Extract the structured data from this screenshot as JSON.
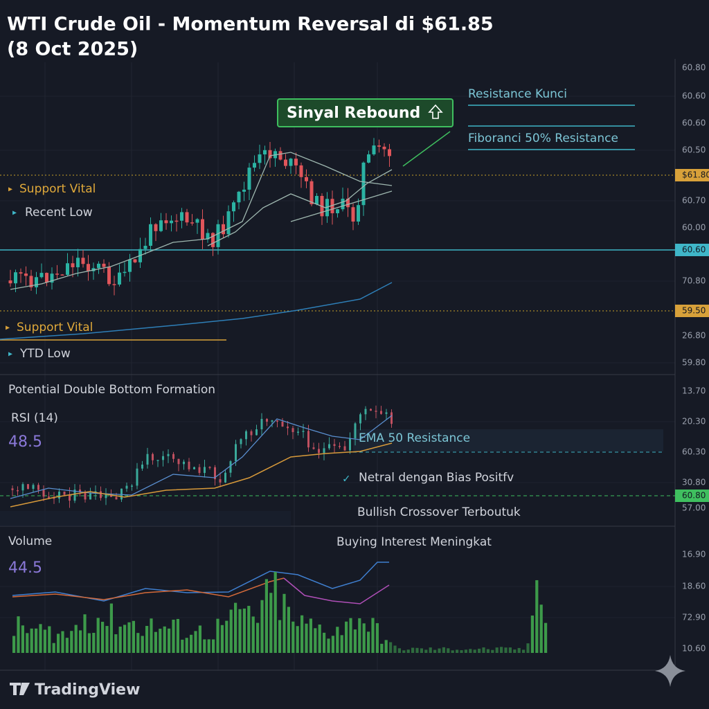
{
  "header": {
    "title_line1": "WTI Crude Oil - Momentum Reversal di $61.85",
    "title_line2": "(8 Oct 2025)"
  },
  "main_panel": {
    "signal": "Sinyal Rebound",
    "resistance_key": "Resistance Kunci",
    "fibonacci": "Fiboranci 50% Resistance",
    "support_vital_1": "Support Vital",
    "recent_low": "Recent Low",
    "support_vital_2": "Support Vital",
    "ytd_low": "YTD Low",
    "price_axis": [
      "60.80",
      "60.60",
      "60.60",
      "60.50",
      "$61.80",
      "60.70",
      "60.00",
      "60.60",
      "70.80",
      "59.50",
      "26.80",
      "59.80"
    ]
  },
  "rsi_panel": {
    "pattern": "Potential Double Bottom Formation",
    "indicator": "RSI (14)",
    "reading": "48.5",
    "ema": "EMA 50 Resistance",
    "neutral": "Netral dengan Bias Positfv",
    "crossover": "Bullish Crossover Terboutuk",
    "price_axis": [
      "13.70",
      "20.30",
      "60.30",
      "30.80",
      "60.80",
      "57.00"
    ]
  },
  "volume_panel": {
    "label": "Volume",
    "reading": "44.5",
    "interest": "Buying Interest Meningkat",
    "price_axis": [
      "16.90",
      "18.60",
      "72.90",
      "10.60"
    ]
  },
  "footer": {
    "brand": "TradingView"
  }
}
